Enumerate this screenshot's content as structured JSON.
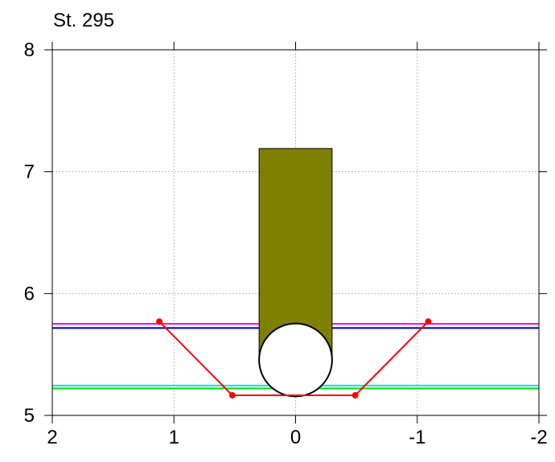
{
  "chart_data": {
    "type": "line",
    "title": "St. 295",
    "xlabel": "",
    "ylabel": "",
    "xlim": [
      2,
      -2
    ],
    "ylim": [
      5,
      8
    ],
    "x_reversed": true,
    "grid": true,
    "x_ticks": [
      2,
      1,
      0,
      -1,
      -2
    ],
    "x_tick_labels": [
      "2",
      "1",
      "0",
      "-1",
      "-2"
    ],
    "y_ticks": [
      5,
      6,
      7,
      8
    ],
    "y_tick_labels": [
      "5",
      "6",
      "7",
      "8"
    ],
    "horizontal_lines": [
      {
        "y": 5.752,
        "color": "#ff00ff"
      },
      {
        "y": 5.717,
        "color": "#0000c0"
      },
      {
        "y": 5.245,
        "color": "#00e0e0"
      },
      {
        "y": 5.222,
        "color": "#00e000"
      }
    ],
    "rectangle": {
      "x": [
        0.3,
        -0.3
      ],
      "y": [
        5.46,
        7.19
      ],
      "color": "#808000"
    },
    "circle": {
      "cx": 0.0,
      "cy": 5.455,
      "r": 0.3
    },
    "series": [
      {
        "color": "#ff0000",
        "x": [
          1.12,
          0.52,
          -0.49,
          -1.09
        ],
        "y": [
          5.77,
          5.165,
          5.165,
          5.77
        ]
      }
    ]
  }
}
